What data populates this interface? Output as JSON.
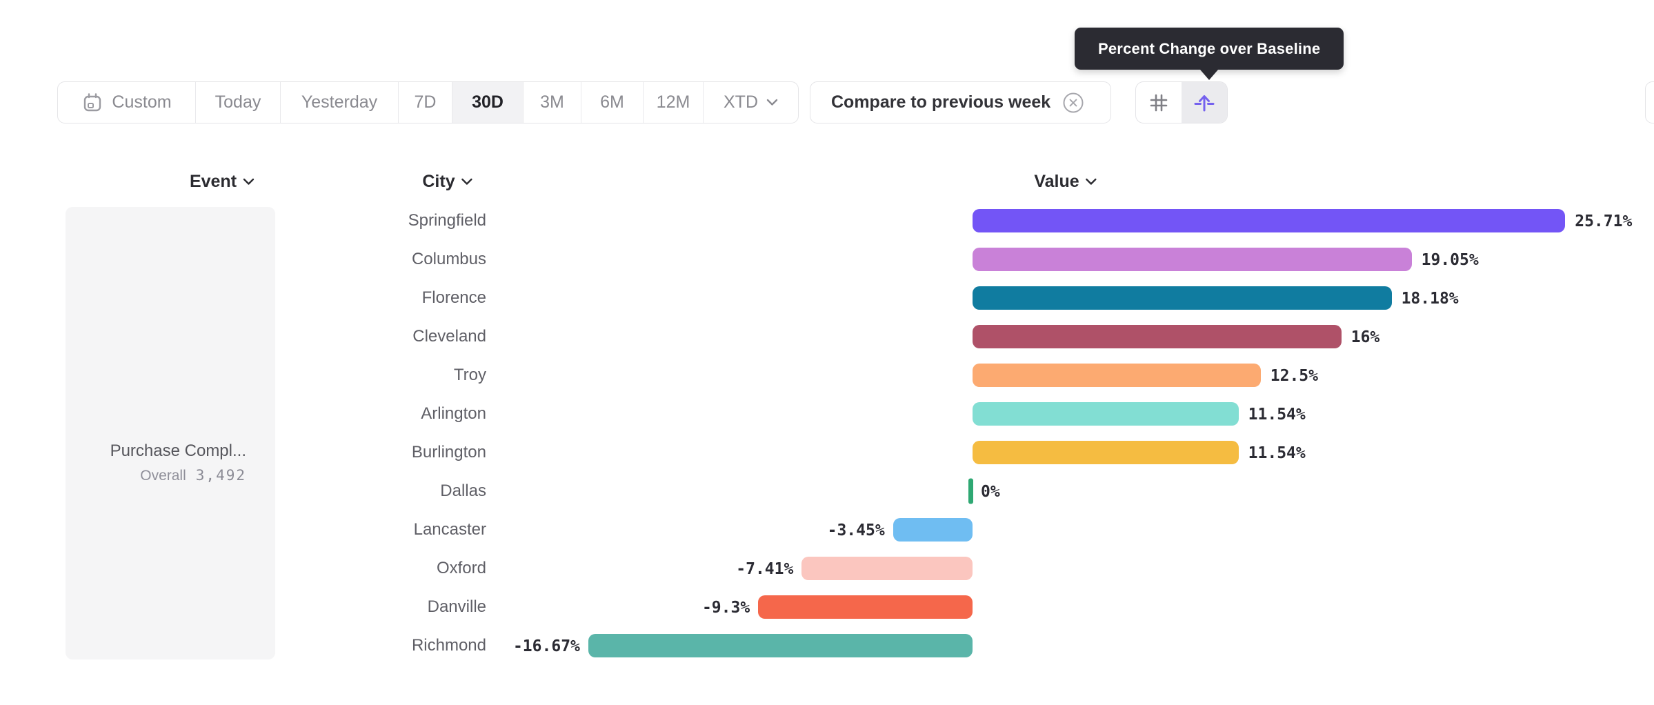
{
  "tooltip": {
    "text": "Percent Change over Baseline",
    "bg_color": "#2b2b32"
  },
  "toolbar": {
    "date_ranges": [
      {
        "label": "Custom",
        "icon": "calendar-icon",
        "selected": false
      },
      {
        "label": "Today",
        "selected": false
      },
      {
        "label": "Yesterday",
        "selected": false
      },
      {
        "label": "7D",
        "selected": false
      },
      {
        "label": "30D",
        "selected": true
      },
      {
        "label": "3M",
        "selected": false
      },
      {
        "label": "6M",
        "selected": false
      },
      {
        "label": "12M",
        "selected": false
      },
      {
        "label": "XTD",
        "selected": false,
        "has_chevron": true
      }
    ],
    "compare": {
      "label": "Compare to previous week",
      "icon": "remove-circle-icon"
    },
    "view_toggles": [
      {
        "icon": "grid-icon",
        "selected": false,
        "color": "#7f7f85"
      },
      {
        "icon": "baseline-arrow-icon",
        "selected": true,
        "color": "#7561ee"
      }
    ]
  },
  "table": {
    "columns": [
      {
        "label": "Event",
        "sortable": true
      },
      {
        "label": "City",
        "sortable": true
      },
      {
        "label": "Value",
        "sortable": true
      }
    ],
    "event_card": {
      "name": "Purchase Compl...",
      "segment_label": "Overall",
      "segment_value": "3,492"
    }
  },
  "chart_data": {
    "type": "bar",
    "orientation": "horizontal",
    "title": "Percent Change over Baseline",
    "xlabel": "Value",
    "ylabel": "City",
    "value_format": "percent",
    "baseline": 0,
    "xlim": [
      -16.67,
      25.71
    ],
    "categories": [
      "Springfield",
      "Columbus",
      "Florence",
      "Cleveland",
      "Troy",
      "Arlington",
      "Burlington",
      "Dallas",
      "Lancaster",
      "Oxford",
      "Danville",
      "Richmond"
    ],
    "values": [
      25.71,
      19.05,
      18.18,
      16,
      12.5,
      11.54,
      11.54,
      0,
      -3.45,
      -7.41,
      -9.3,
      -16.67
    ],
    "value_labels": [
      "25.71%",
      "19.05%",
      "18.18%",
      "16%",
      "12.5%",
      "11.54%",
      "11.54%",
      "0%",
      "-3.45%",
      "-7.41%",
      "-9.3%",
      "-16.67%"
    ],
    "colors": [
      "#7355f6",
      "#c981d8",
      "#107ca0",
      "#af5168",
      "#fcaa71",
      "#82ded3",
      "#f5bc41",
      "#2fa873",
      "#6fbdf2",
      "#fbc6bf",
      "#f5674b",
      "#5ab5a9"
    ],
    "zero_tick_color": "#2fa873"
  }
}
